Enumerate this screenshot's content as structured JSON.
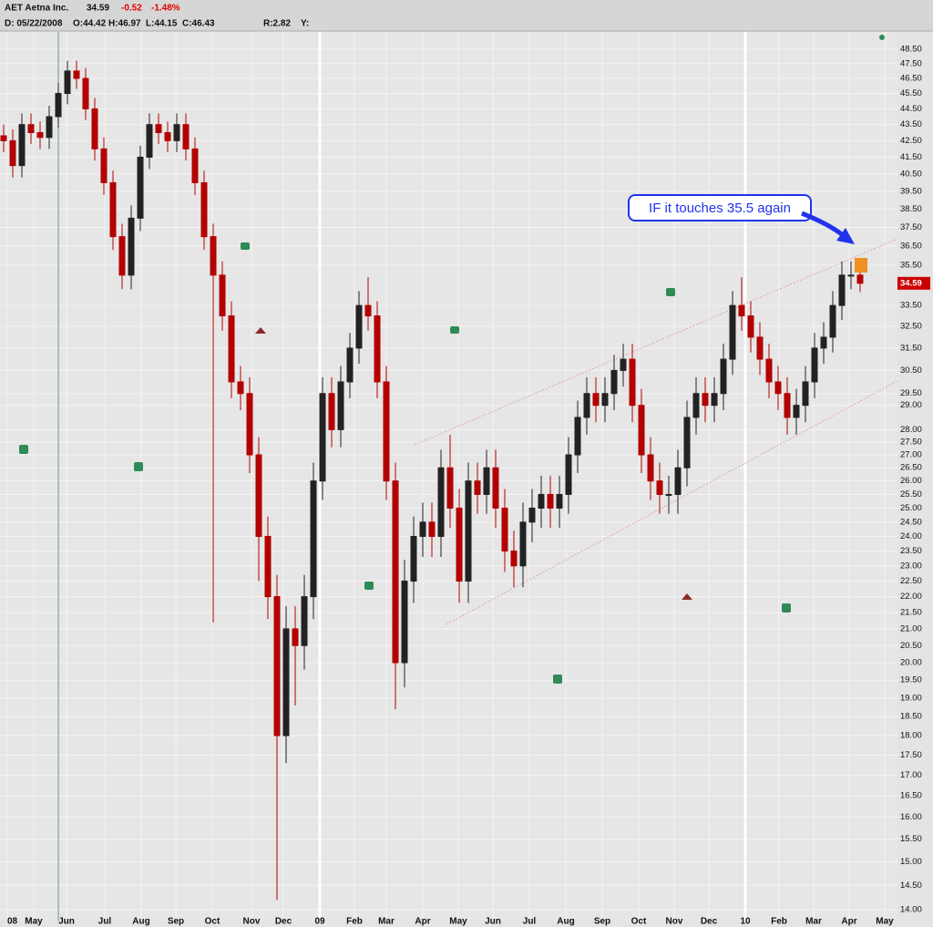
{
  "header": {
    "symbol": "AET Aetna Inc.",
    "last": "34.59",
    "change": "-0.52",
    "change_pct": "-1.48%",
    "date": "D: 05/22/2008",
    "open": "O:44.42",
    "high": "H:46.97",
    "low": "L:44.15",
    "close": "C:46.43",
    "r": "R:2.82",
    "y": "Y:"
  },
  "chart_data": {
    "type": "candlestick",
    "log_scale": true,
    "grid": true,
    "annotation": "IF it touches 35.5 again",
    "price_tag": 34.59,
    "up_color": "#222222",
    "down_color": "#b30000",
    "tag_color": "#cc0000",
    "categories": [
      null,
      null,
      null,
      null,
      null,
      null,
      null,
      null,
      null,
      null,
      null,
      null,
      null,
      null,
      null,
      null,
      null,
      null,
      null,
      null,
      null,
      null,
      null,
      null,
      null,
      null,
      null,
      null,
      null,
      null,
      null,
      null,
      null,
      null,
      null,
      null,
      null,
      null,
      null,
      null,
      null,
      null,
      null,
      null,
      null,
      null,
      null,
      null,
      null,
      null,
      null,
      null,
      null,
      null,
      null,
      null,
      null,
      null,
      null,
      null,
      null,
      null,
      null,
      null,
      null,
      null,
      null,
      null,
      null,
      null,
      null,
      null,
      null,
      null,
      null,
      null,
      null,
      null,
      null,
      null,
      null,
      null,
      null,
      null,
      null,
      null,
      null,
      null,
      null,
      null,
      null,
      null,
      null,
      null,
      null
    ],
    "open": [
      42.8,
      42.5,
      41,
      43.5,
      43,
      42.7,
      44,
      45.5,
      47,
      46.5,
      44.5,
      42,
      40,
      37,
      35,
      38,
      41.5,
      43.5,
      43,
      42.5,
      43.5,
      42,
      40,
      37,
      35,
      33,
      30,
      29.5,
      27,
      24,
      22,
      18,
      21,
      20.5,
      22,
      26,
      29.5,
      28,
      30,
      31.5,
      33.5,
      33,
      30,
      26,
      20,
      22.5,
      24,
      24.5,
      24,
      26.5,
      25,
      22.5,
      26,
      25.5,
      26.5,
      25,
      23.5,
      23,
      24.5,
      25,
      25.5,
      25,
      25.5,
      27,
      28.5,
      29.5,
      29,
      29.5,
      30.5,
      31,
      29,
      27,
      26,
      25.5,
      25.5,
      26.5,
      28.5,
      29.5,
      29,
      29.5,
      31,
      33.5,
      33,
      32,
      31,
      30,
      29.5,
      28.5,
      29,
      30,
      31.5,
      32,
      33.5,
      35,
      35
    ],
    "high": [
      43.5,
      43.2,
      44.2,
      44.2,
      43.7,
      44.7,
      46.2,
      47.7,
      47.7,
      47.2,
      45.2,
      42.7,
      40.7,
      37.7,
      38.7,
      42.2,
      44.2,
      44.2,
      43.7,
      44.2,
      44.2,
      42.7,
      40.7,
      37.7,
      35.7,
      33.7,
      30.7,
      30.2,
      27.7,
      24.7,
      22.7,
      21.7,
      21.7,
      22.7,
      26.7,
      30.2,
      30.2,
      30.7,
      32.2,
      34.2,
      34.9,
      33.7,
      30.7,
      26.7,
      23.2,
      24.7,
      25.2,
      25.2,
      27.2,
      27.8,
      25.7,
      26.7,
      26.7,
      27.2,
      27.2,
      25.7,
      24.2,
      25.2,
      25.7,
      26.2,
      26.2,
      26.2,
      27.7,
      29.2,
      30.2,
      30.2,
      30.2,
      31.2,
      31.7,
      31.7,
      29.7,
      27.7,
      26.7,
      26.2,
      27.2,
      29.2,
      30.2,
      30.2,
      30.2,
      31.7,
      34.2,
      34.9,
      33.7,
      32.7,
      31.7,
      30.7,
      30.2,
      29.7,
      30.7,
      32.2,
      32.7,
      34.2,
      35.7,
      35.7,
      35.5
    ],
    "low": [
      41.8,
      40.3,
      40.3,
      42.3,
      42,
      42,
      43.3,
      44.8,
      45.8,
      43.8,
      41.3,
      39.3,
      36.3,
      34.3,
      34.3,
      37.3,
      40.8,
      42.3,
      41.8,
      41.8,
      41.3,
      39.3,
      36.3,
      21.2,
      32.3,
      29.3,
      28.8,
      26.3,
      22.5,
      21.3,
      14.2,
      17.3,
      18.8,
      19.8,
      21.3,
      25.3,
      27.3,
      27.3,
      29.3,
      30.8,
      32.3,
      29.3,
      25.3,
      18.7,
      19.3,
      21.8,
      23.3,
      23.3,
      23.3,
      24.3,
      21.8,
      21.8,
      24.8,
      24.8,
      24.3,
      22.8,
      22.3,
      22.3,
      23.8,
      24.3,
      24.3,
      24.3,
      24.8,
      26.3,
      27.8,
      28.3,
      28.3,
      28.8,
      29.8,
      28.3,
      26.3,
      25.3,
      24.8,
      24.8,
      24.8,
      25.8,
      27.8,
      28.3,
      28.3,
      28.8,
      30.3,
      32.3,
      31.3,
      30.3,
      29.3,
      28.8,
      27.8,
      27.8,
      28.3,
      29.3,
      30.8,
      31.3,
      32.8,
      34.3,
      34.15
    ],
    "close": [
      42.5,
      41,
      43.5,
      43,
      42.7,
      44,
      45.5,
      47,
      46.5,
      44.5,
      42,
      40,
      37,
      35,
      38,
      41.5,
      43.5,
      43,
      42.5,
      43.5,
      42,
      40,
      37,
      35,
      33,
      30,
      29.5,
      27,
      24,
      22,
      18,
      21,
      20.5,
      22,
      26,
      29.5,
      28,
      30,
      31.5,
      33.5,
      33,
      30,
      26,
      20,
      22.5,
      24,
      24.5,
      24,
      26.5,
      25,
      22.5,
      26,
      25.5,
      26.5,
      25,
      23.5,
      23,
      24.5,
      25,
      25.5,
      25,
      25.5,
      27,
      28.5,
      29.5,
      29,
      29.5,
      30.5,
      31,
      29,
      27,
      26,
      25.5,
      25.5,
      26.5,
      28.5,
      29.5,
      29,
      29.5,
      31,
      33.5,
      33,
      32,
      31,
      30,
      29.5,
      28.5,
      29,
      30,
      31.5,
      32,
      33.5,
      35,
      35,
      34.59
    ],
    "xlim": [
      -0.4,
      98.1
    ],
    "xticks": [
      {
        "value": 0.4,
        "label": "08"
      },
      {
        "value": 3.3,
        "label": "May"
      },
      {
        "value": 6.9,
        "label": "Jun"
      },
      {
        "value": 11.1,
        "label": "Jul"
      },
      {
        "value": 15.1,
        "label": "Aug"
      },
      {
        "value": 18.9,
        "label": "Sep"
      },
      {
        "value": 22.9,
        "label": "Oct"
      },
      {
        "value": 27.2,
        "label": "Nov"
      },
      {
        "value": 30.7,
        "label": "Dec"
      },
      {
        "value": 34.7,
        "label": "09"
      },
      {
        "value": 38.5,
        "label": "Feb"
      },
      {
        "value": 42,
        "label": "Mar"
      },
      {
        "value": 46,
        "label": "Apr"
      },
      {
        "value": 49.9,
        "label": "May"
      },
      {
        "value": 53.7,
        "label": "Jun"
      },
      {
        "value": 57.7,
        "label": "Jul"
      },
      {
        "value": 61.7,
        "label": "Aug"
      },
      {
        "value": 65.7,
        "label": "Sep"
      },
      {
        "value": 69.7,
        "label": "Oct"
      },
      {
        "value": 73.6,
        "label": "Nov"
      },
      {
        "value": 77.4,
        "label": "Dec"
      },
      {
        "value": 81.4,
        "label": "10"
      },
      {
        "value": 85.1,
        "label": "Feb"
      },
      {
        "value": 88.9,
        "label": "Mar"
      },
      {
        "value": 92.8,
        "label": "Apr"
      },
      {
        "value": 96.7,
        "label": "May"
      }
    ],
    "ylim": [
      13.78,
      49.73
    ],
    "yticks": [
      {
        "value": 14,
        "label": "14.00"
      },
      {
        "value": 14.5,
        "label": "14.50"
      },
      {
        "value": 15,
        "label": "15.00"
      },
      {
        "value": 15.5,
        "label": "15.50"
      },
      {
        "value": 16,
        "label": "16.00"
      },
      {
        "value": 16.5,
        "label": "16.50"
      },
      {
        "value": 17,
        "label": "17.00"
      },
      {
        "value": 17.5,
        "label": "17.50"
      },
      {
        "value": 18,
        "label": "18.00"
      },
      {
        "value": 18.5,
        "label": "18.50"
      },
      {
        "value": 19,
        "label": "19.00"
      },
      {
        "value": 19.5,
        "label": "19.50"
      },
      {
        "value": 20,
        "label": "20.00"
      },
      {
        "value": 20.5,
        "label": "20.50"
      },
      {
        "value": 21,
        "label": "21.00"
      },
      {
        "value": 21.5,
        "label": "21.50"
      },
      {
        "value": 22,
        "label": "22.00"
      },
      {
        "value": 22.5,
        "label": "22.50"
      },
      {
        "value": 23,
        "label": "23.00"
      },
      {
        "value": 23.5,
        "label": "23.50"
      },
      {
        "value": 24,
        "label": "24.00"
      },
      {
        "value": 24.5,
        "label": "24.50"
      },
      {
        "value": 25,
        "label": "25.00"
      },
      {
        "value": 25.5,
        "label": "25.50"
      },
      {
        "value": 26,
        "label": "26.00"
      },
      {
        "value": 26.5,
        "label": "26.50"
      },
      {
        "value": 27,
        "label": "27.00"
      },
      {
        "value": 27.5,
        "label": "27.50"
      },
      {
        "value": 28,
        "label": "28.00"
      },
      {
        "value": 29,
        "label": "29.00"
      },
      {
        "value": 29.5,
        "label": "29.50"
      },
      {
        "value": 30.5,
        "label": "30.50"
      },
      {
        "value": 31.5,
        "label": "31.50"
      },
      {
        "value": 32.5,
        "label": "32.50"
      },
      {
        "value": 33.5,
        "label": "33.50"
      },
      {
        "value": 35.5,
        "label": "35.50"
      },
      {
        "value": 36.5,
        "label": "36.50"
      },
      {
        "value": 37.5,
        "label": "37.50"
      },
      {
        "value": 38.5,
        "label": "38.50"
      },
      {
        "value": 39.5,
        "label": "39.50"
      },
      {
        "value": 40.5,
        "label": "40.50"
      },
      {
        "value": 41.5,
        "label": "41.50"
      },
      {
        "value": 42.5,
        "label": "42.50"
      },
      {
        "value": 43.5,
        "label": "43.50"
      },
      {
        "value": 44.5,
        "label": "44.50"
      },
      {
        "value": 45.5,
        "label": "45.50"
      },
      {
        "value": 46.5,
        "label": "46.50"
      },
      {
        "value": 47.5,
        "label": "47.50"
      },
      {
        "value": 48.5,
        "label": "48.50"
      }
    ]
  }
}
